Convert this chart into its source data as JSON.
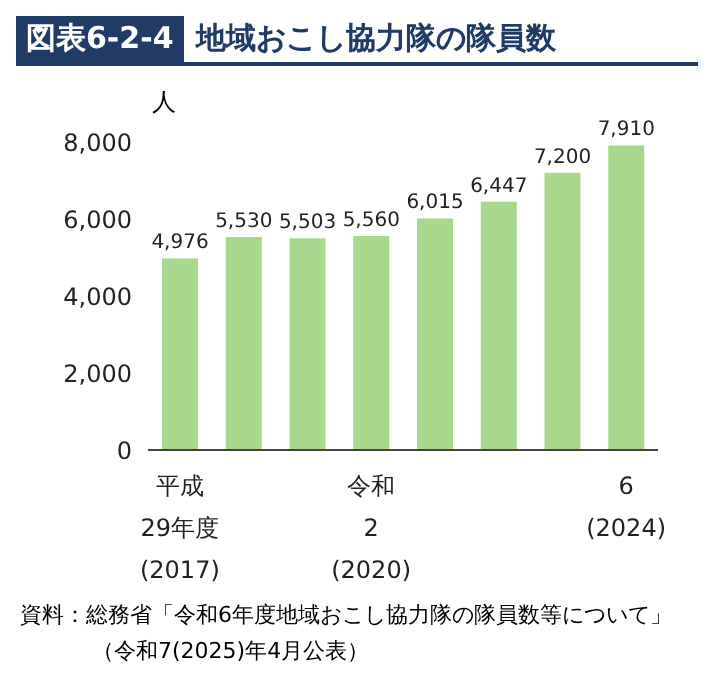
{
  "chart_data": {
    "type": "bar",
    "title": "図表6-2-4 地域おこし協力隊の隊員数",
    "ylabel": "人",
    "categories": [
      "平成\n29年度\n(2017)",
      null,
      null,
      "令和\n2\n(2020)",
      null,
      null,
      null,
      "6\n(2024)"
    ],
    "values": [
      4976,
      5530,
      5503,
      5560,
      6015,
      6447,
      7200,
      7910
    ],
    "color": "#a8d88c",
    "value_labels": [
      "4,976",
      "5,530",
      "5,503",
      "5,560",
      "6,015",
      "6,447",
      "7,200",
      "7,910"
    ],
    "ylim": [
      0,
      8000
    ],
    "yticks": [
      0,
      {
        "value": 2000,
        "label": "2,000"
      },
      {
        "value": 4000,
        "label": "4,000"
      },
      {
        "value": 6000,
        "label": "6,000"
      },
      {
        "value": 8000,
        "label": "8,000"
      }
    ],
    "grid": false,
    "annotations": [
      "資料：総務省「令和6年度地域おこし協力隊の隊員数等について」",
      "（令和7(2025)年4月公表）"
    ]
  }
}
